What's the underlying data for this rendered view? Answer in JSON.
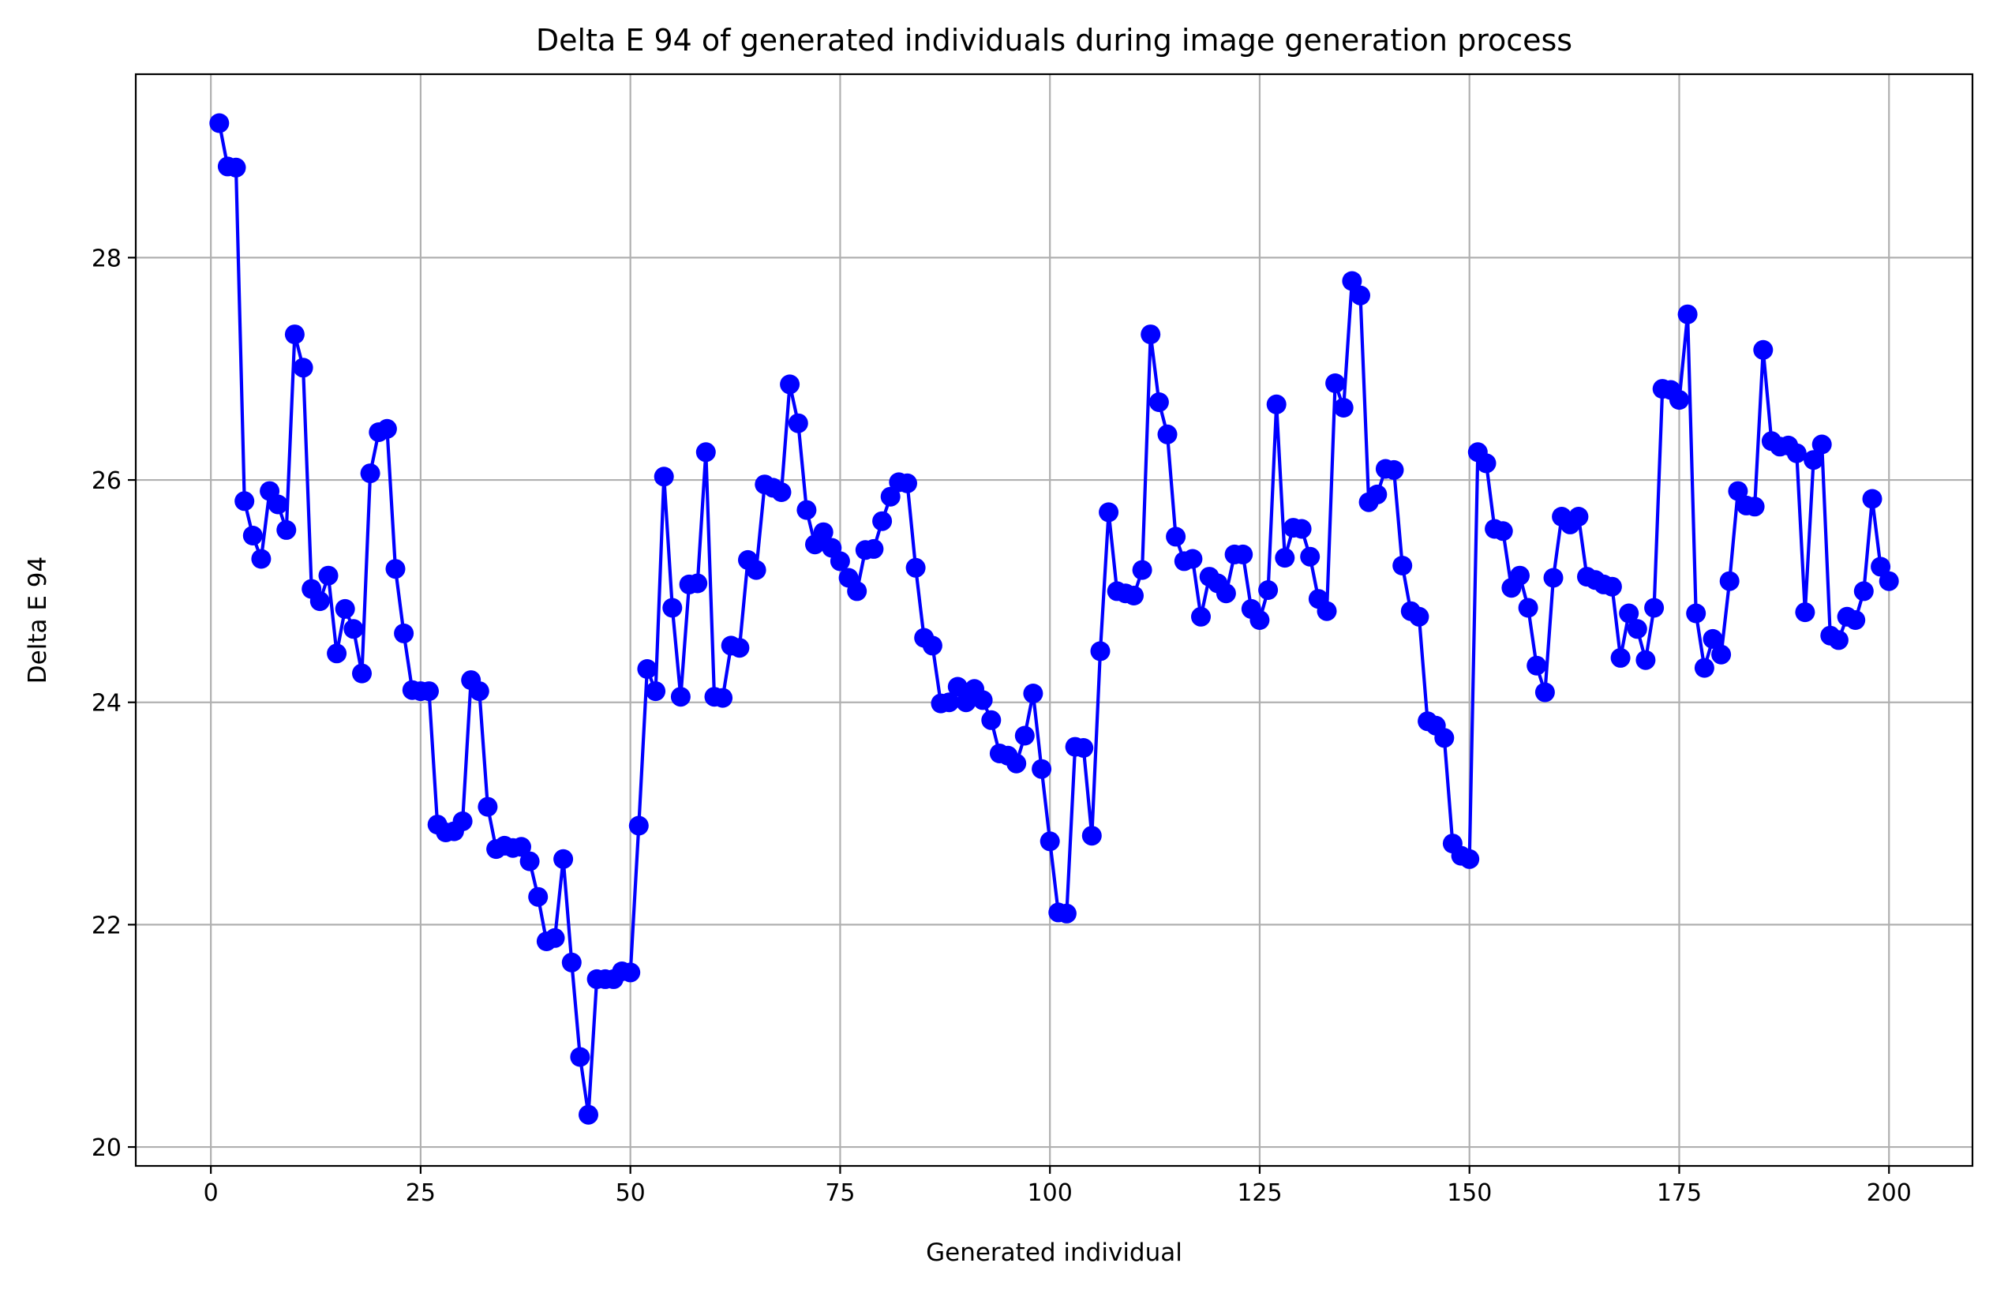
{
  "chart_data": {
    "type": "line",
    "title": "Delta E 94 of generated individuals during image generation process",
    "xlabel": "Generated individual",
    "ylabel": "Delta E 94",
    "xlim": [
      -8.95,
      209.95
    ],
    "ylim": [
      19.83,
      29.65
    ],
    "xticks": [
      0,
      25,
      50,
      75,
      100,
      125,
      150,
      175,
      200
    ],
    "xtick_labels": [
      "0",
      "25",
      "50",
      "75",
      "100",
      "125",
      "150",
      "175",
      "200"
    ],
    "yticks": [
      20,
      22,
      24,
      26,
      28
    ],
    "ytick_labels": [
      "20",
      "22",
      "24",
      "26",
      "28"
    ],
    "grid": true,
    "legend": "none",
    "series": [
      {
        "color": "#0000ff",
        "marker": "circle",
        "x": [
          1,
          2,
          3,
          4,
          5,
          6,
          7,
          8,
          9,
          10,
          11,
          12,
          13,
          14,
          15,
          16,
          17,
          18,
          19,
          20,
          21,
          22,
          23,
          24,
          25,
          26,
          27,
          28,
          29,
          30,
          31,
          32,
          33,
          34,
          35,
          36,
          37,
          38,
          39,
          40,
          41,
          42,
          43,
          44,
          45,
          46,
          47,
          48,
          49,
          50,
          51,
          52,
          53,
          54,
          55,
          56,
          57,
          58,
          59,
          60,
          61,
          62,
          63,
          64,
          65,
          66,
          67,
          68,
          69,
          70,
          71,
          72,
          73,
          74,
          75,
          76,
          77,
          78,
          79,
          80,
          81,
          82,
          83,
          84,
          85,
          86,
          87,
          88,
          89,
          90,
          91,
          92,
          93,
          94,
          95,
          96,
          97,
          98,
          99,
          100,
          101,
          102,
          103,
          104,
          105,
          106,
          107,
          108,
          109,
          110,
          111,
          112,
          113,
          114,
          115,
          116,
          117,
          118,
          119,
          120,
          121,
          122,
          123,
          124,
          125,
          126,
          127,
          128,
          129,
          130,
          131,
          132,
          133,
          134,
          135,
          136,
          137,
          138,
          139,
          140,
          141,
          142,
          143,
          144,
          145,
          146,
          147,
          148,
          149,
          150,
          151,
          152,
          153,
          154,
          155,
          156,
          157,
          158,
          159,
          160,
          161,
          162,
          163,
          164,
          165,
          166,
          167,
          168,
          169,
          170,
          171,
          172,
          173,
          174,
          175,
          176,
          177,
          178,
          179,
          180,
          181,
          182,
          183,
          184,
          185,
          186,
          187,
          188,
          189,
          190,
          191,
          192,
          193,
          194,
          195,
          196,
          197,
          198,
          199,
          200
        ],
        "y": [
          29.21,
          28.82,
          28.81,
          25.81,
          25.5,
          25.29,
          25.9,
          25.78,
          25.55,
          27.31,
          27.01,
          25.02,
          24.91,
          25.14,
          24.44,
          24.84,
          24.66,
          24.26,
          26.06,
          26.43,
          26.46,
          25.2,
          24.62,
          24.11,
          24.1,
          24.1,
          22.9,
          22.83,
          22.84,
          22.93,
          24.2,
          24.1,
          23.06,
          22.68,
          22.71,
          22.69,
          22.7,
          22.57,
          22.25,
          21.85,
          21.88,
          22.59,
          21.66,
          20.81,
          20.29,
          21.51,
          21.51,
          21.51,
          21.58,
          21.57,
          22.89,
          24.3,
          24.1,
          26.03,
          24.85,
          24.05,
          25.06,
          25.07,
          26.25,
          24.05,
          24.04,
          24.51,
          24.49,
          25.28,
          25.19,
          25.96,
          25.93,
          25.89,
          26.86,
          26.51,
          25.73,
          25.42,
          25.53,
          25.39,
          25.27,
          25.12,
          25.0,
          25.37,
          25.38,
          25.63,
          25.85,
          25.98,
          25.97,
          25.21,
          24.58,
          24.51,
          23.99,
          24.0,
          24.14,
          24.0,
          24.12,
          24.02,
          23.84,
          23.54,
          23.52,
          23.45,
          23.7,
          24.08,
          23.4,
          22.75,
          22.11,
          22.1,
          23.6,
          23.59,
          22.8,
          24.46,
          25.71,
          25.0,
          24.98,
          24.96,
          25.19,
          27.31,
          26.7,
          26.41,
          25.49,
          25.27,
          25.29,
          24.77,
          25.13,
          25.07,
          24.98,
          25.33,
          25.33,
          24.84,
          24.74,
          25.01,
          26.68,
          25.3,
          25.57,
          25.56,
          25.31,
          24.93,
          24.82,
          26.87,
          26.65,
          27.79,
          27.66,
          25.8,
          25.87,
          26.1,
          26.09,
          25.23,
          24.82,
          24.77,
          23.83,
          23.79,
          23.68,
          22.73,
          22.62,
          22.59,
          26.25,
          26.15,
          25.56,
          25.54,
          25.03,
          25.14,
          24.85,
          24.33,
          24.09,
          25.12,
          25.67,
          25.6,
          25.67,
          25.13,
          25.1,
          25.06,
          25.04,
          24.4,
          24.8,
          24.66,
          24.38,
          24.85,
          26.82,
          26.81,
          26.72,
          27.49,
          24.8,
          24.31,
          24.57,
          24.43,
          25.09,
          25.9,
          25.77,
          25.76,
          27.17,
          26.35,
          26.3,
          26.31,
          26.24,
          24.81,
          26.18,
          26.32,
          24.6,
          24.56,
          24.77,
          24.74,
          25.0,
          25.83,
          25.22,
          25.09
        ]
      }
    ]
  }
}
